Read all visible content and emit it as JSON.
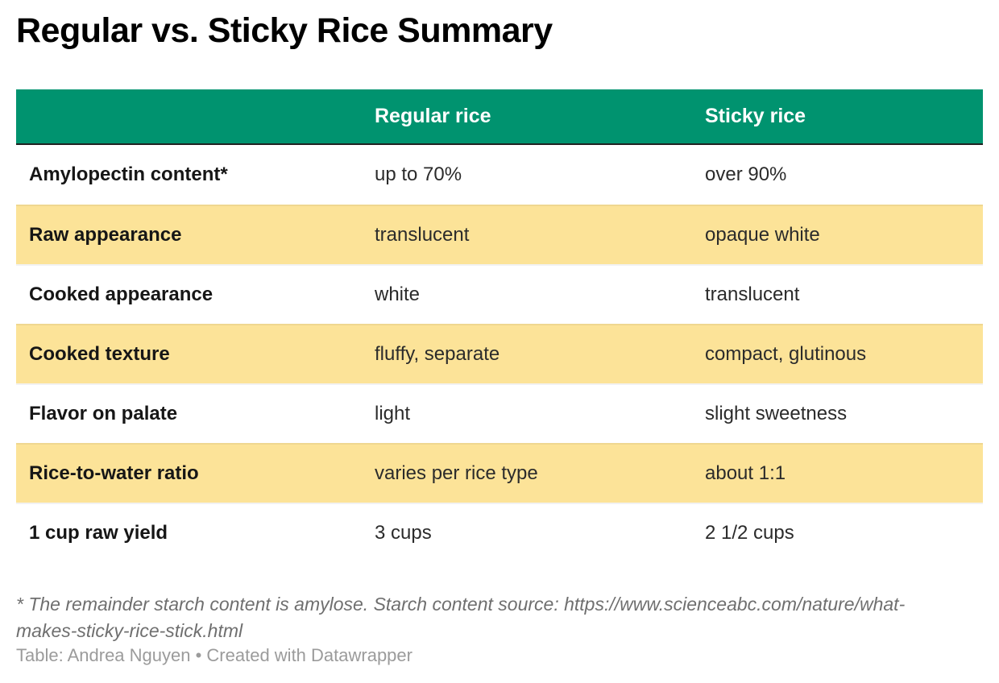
{
  "chart_data": {
    "type": "table",
    "title": "Regular vs. Sticky Rice Summary",
    "columns": [
      "",
      "Regular rice",
      "Sticky rice"
    ],
    "rows": [
      {
        "label": "Amylopectin content*",
        "regular": "up to 70%",
        "sticky": "over 90%",
        "highlighted": false
      },
      {
        "label": "Raw appearance",
        "regular": "translucent",
        "sticky": "opaque white",
        "highlighted": true
      },
      {
        "label": "Cooked appearance",
        "regular": "white",
        "sticky": "translucent",
        "highlighted": false
      },
      {
        "label": "Cooked texture",
        "regular": "fluffy, separate",
        "sticky": "compact, glutinous",
        "highlighted": true
      },
      {
        "label": "Flavor on palate",
        "regular": "light",
        "sticky": "slight sweetness",
        "highlighted": false
      },
      {
        "label": "Rice-to-water ratio",
        "regular": "varies per rice type",
        "sticky": "about 1:1",
        "highlighted": true
      },
      {
        "label": "1 cup raw yield",
        "regular": "3 cups",
        "sticky": "2 1/2 cups",
        "highlighted": false
      }
    ],
    "footnote_line1": "* The remainder starch content is amylose. Starch content source: https://www.scienceabc.com/nature/what-",
    "footnote_line2": "makes-sticky-rice-stick.html",
    "attribution": "Table: Andrea Nguyen • Created with Datawrapper",
    "legend_position": "none",
    "grid": "row-separators"
  },
  "colors": {
    "header_bg": "#00936F",
    "header_text": "#ffffff",
    "header_border": "#212121",
    "row_highlight": "#FCE398"
  }
}
